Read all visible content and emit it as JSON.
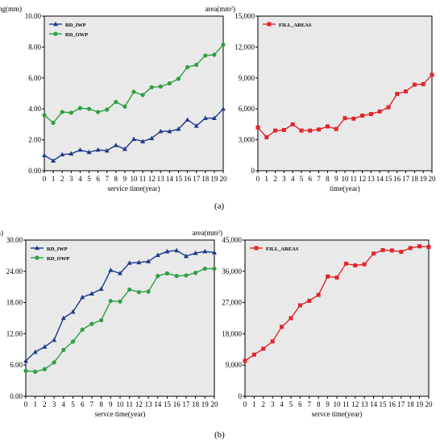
{
  "figure_labels": {
    "a": "(a)",
    "b": "(b)"
  },
  "colors": {
    "plot_bg": "#e9e9e9",
    "iwp": "#1f3a8a",
    "owp": "#2ea043",
    "area": "#e0262b"
  },
  "chart_data": [
    {
      "type": "line",
      "ylabel": "rutting(mm)",
      "xlabel": "service time(year)",
      "ylim": [
        0,
        10
      ],
      "yticks": [
        "0.00",
        "2.00",
        "4.00",
        "6.00",
        "8.00",
        "10.00"
      ],
      "x": [
        0,
        1,
        2,
        3,
        4,
        5,
        6,
        7,
        8,
        9,
        10,
        11,
        12,
        13,
        14,
        15,
        16,
        17,
        18,
        19,
        20
      ],
      "legend_position": "top-left",
      "grid": false,
      "series": [
        {
          "name": "RD_IWP",
          "color": "#1f3a8a",
          "marker": "triangle",
          "values": [
            1.0,
            0.65,
            1.05,
            1.1,
            1.35,
            1.2,
            1.35,
            1.3,
            1.65,
            1.4,
            2.05,
            1.9,
            2.1,
            2.55,
            2.55,
            2.7,
            3.3,
            2.9,
            3.4,
            3.4,
            4.0
          ]
        },
        {
          "name": "RD_OWP",
          "color": "#2ea043",
          "marker": "circle",
          "values": [
            3.6,
            3.1,
            3.8,
            3.75,
            4.05,
            4.0,
            3.8,
            3.95,
            4.45,
            4.15,
            5.1,
            4.9,
            5.4,
            5.45,
            5.65,
            5.95,
            6.7,
            6.85,
            7.45,
            7.5,
            8.15
          ]
        }
      ]
    },
    {
      "type": "line",
      "ylabel": "area(mm²)",
      "xlabel": "time(year)",
      "ylim": [
        0,
        15000
      ],
      "yticks": [
        "0",
        "3,000",
        "6,000",
        "9,000",
        "12,000",
        "15,000"
      ],
      "x": [
        0,
        1,
        2,
        3,
        4,
        5,
        6,
        7,
        8,
        9,
        10,
        11,
        12,
        13,
        14,
        15,
        16,
        17,
        18,
        19,
        20
      ],
      "legend_position": "top-left",
      "grid": false,
      "series": [
        {
          "name": "FILL_AREAS",
          "color": "#e0262b",
          "marker": "square",
          "values": [
            4200,
            3250,
            3900,
            3950,
            4500,
            3900,
            3900,
            4000,
            4300,
            4050,
            5100,
            5050,
            5350,
            5500,
            5750,
            6150,
            7450,
            7700,
            8350,
            8400,
            9300
          ]
        }
      ]
    },
    {
      "type": "line",
      "ylabel": "rutting(mm)",
      "xlabel": "servce time(year)",
      "ylim": [
        0,
        30
      ],
      "yticks": [
        "0.00",
        "6.00",
        "12.00",
        "18.00",
        "24.00",
        "30.00"
      ],
      "x": [
        0,
        1,
        2,
        3,
        4,
        5,
        6,
        7,
        8,
        9,
        10,
        11,
        12,
        13,
        14,
        15,
        16,
        17,
        18,
        19,
        20
      ],
      "legend_position": "top-left",
      "grid": false,
      "series": [
        {
          "name": "RD_IWP",
          "color": "#1f3a8a",
          "marker": "triangle",
          "values": [
            6.8,
            8.5,
            9.5,
            10.8,
            15.0,
            16.2,
            19.0,
            19.7,
            20.6,
            24.2,
            23.6,
            25.6,
            25.7,
            25.9,
            27.1,
            27.8,
            28.0,
            26.9,
            27.5,
            27.8,
            27.6
          ]
        },
        {
          "name": "RD_OWP",
          "color": "#2ea043",
          "marker": "circle",
          "values": [
            4.9,
            4.7,
            5.2,
            6.5,
            8.9,
            10.5,
            12.8,
            13.9,
            14.6,
            18.3,
            18.2,
            20.5,
            20.0,
            20.1,
            23.1,
            23.6,
            23.1,
            23.2,
            23.7,
            24.5,
            24.5
          ]
        }
      ]
    },
    {
      "type": "line",
      "ylabel": "area(mm²)",
      "xlabel": "servce time(year)",
      "ylim": [
        0,
        45000
      ],
      "yticks": [
        "0",
        "9,000",
        "18,000",
        "27,000",
        "36,000",
        "45,000"
      ],
      "x": [
        0,
        1,
        2,
        3,
        4,
        5,
        6,
        7,
        8,
        9,
        10,
        11,
        12,
        13,
        14,
        15,
        16,
        17,
        18,
        19,
        20
      ],
      "legend_position": "top-left",
      "grid": false,
      "series": [
        {
          "name": "FILL_AREAS",
          "color": "#e0262b",
          "marker": "square",
          "values": [
            10200,
            12000,
            13700,
            15800,
            20000,
            22500,
            26200,
            27500,
            29200,
            34500,
            34200,
            38200,
            37700,
            38000,
            41100,
            42100,
            42000,
            41600,
            42700,
            43200,
            43000
          ]
        }
      ]
    }
  ]
}
